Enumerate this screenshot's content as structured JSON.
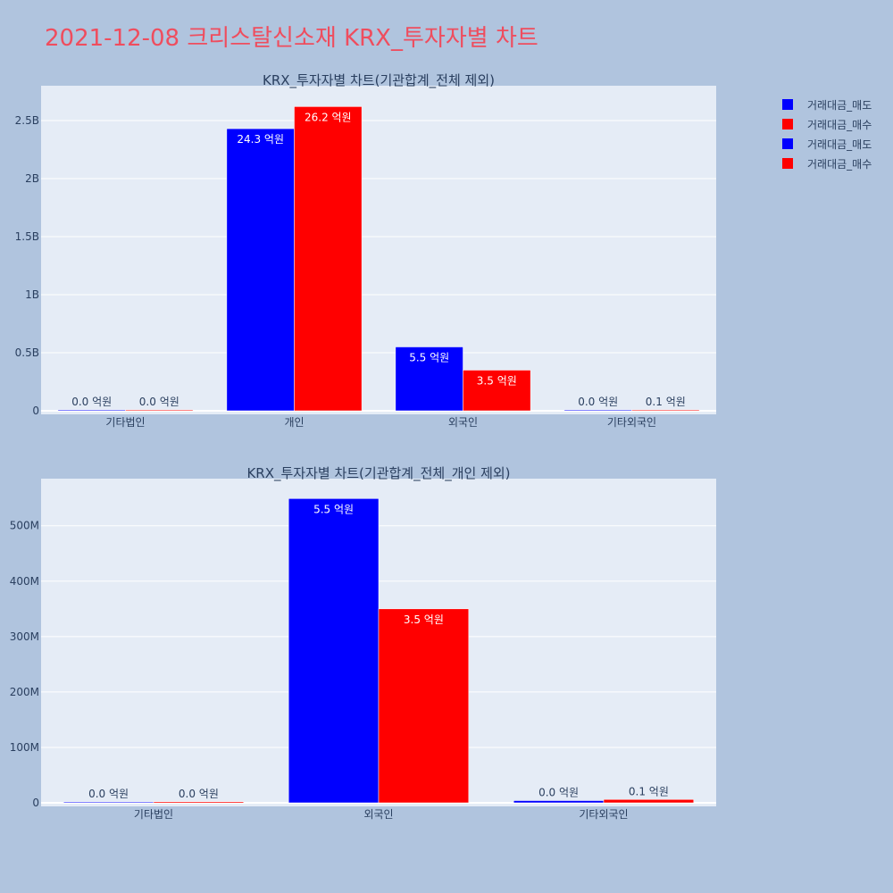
{
  "title": "2021-12-08 크리스탈신소재 KRX_투자자별 차트",
  "colors": {
    "sell": "#0000ff",
    "buy": "#ff0000",
    "plot_bg": "#e5ecf6",
    "page_bg": "#b0c4de"
  },
  "legend": {
    "items": [
      {
        "label": "거래대금_매도",
        "color": "#0000ff"
      },
      {
        "label": "거래대금_매수",
        "color": "#ff0000"
      },
      {
        "label": "거래대금_매도",
        "color": "#0000ff"
      },
      {
        "label": "거래대금_매수",
        "color": "#ff0000"
      }
    ]
  },
  "chart_data": [
    {
      "type": "bar",
      "title": "KRX_투자자별 차트(기관합계_전체 제외)",
      "categories": [
        "기타법인",
        "개인",
        "외국인",
        "기타외국인"
      ],
      "ylim": [
        0,
        2800000000
      ],
      "yticks": [
        0,
        500000000,
        1000000000,
        1500000000,
        2000000000,
        2500000000
      ],
      "ytick_labels": [
        "0",
        "0.5B",
        "1B",
        "1.5B",
        "2B",
        "2.5B"
      ],
      "grid": true,
      "legend_position": "top-right",
      "series": [
        {
          "name": "거래대금_매도",
          "color": "#0000ff",
          "values": [
            2000000,
            2430000000,
            550000000,
            3000000
          ],
          "labels": [
            "0.0 억원",
            "24.3 억원",
            "5.5 억원",
            "0.0 억원"
          ]
        },
        {
          "name": "거래대금_매수",
          "color": "#ff0000",
          "values": [
            2000000,
            2620000000,
            350000000,
            6000000
          ],
          "labels": [
            "0.0 억원",
            "26.2 억원",
            "3.5 억원",
            "0.1 억원"
          ]
        }
      ]
    },
    {
      "type": "bar",
      "title": "KRX_투자자별 차트(기관합계_전체_개인 제외)",
      "categories": [
        "기타법인",
        "외국인",
        "기타외국인"
      ],
      "ylim": [
        0,
        585000000
      ],
      "yticks": [
        0,
        100000000,
        200000000,
        300000000,
        400000000,
        500000000
      ],
      "ytick_labels": [
        "0",
        "100M",
        "200M",
        "300M",
        "400M",
        "500M"
      ],
      "grid": true,
      "series": [
        {
          "name": "거래대금_매도",
          "color": "#0000ff",
          "values": [
            500000,
            549000000,
            4000000
          ],
          "labels": [
            "0.0 억원",
            "5.5 억원",
            "0.0 억원"
          ]
        },
        {
          "name": "거래대금_매수",
          "color": "#ff0000",
          "values": [
            2000000,
            350000000,
            6000000
          ],
          "labels": [
            "0.0 억원",
            "3.5 억원",
            "0.1 억원"
          ]
        }
      ]
    }
  ]
}
